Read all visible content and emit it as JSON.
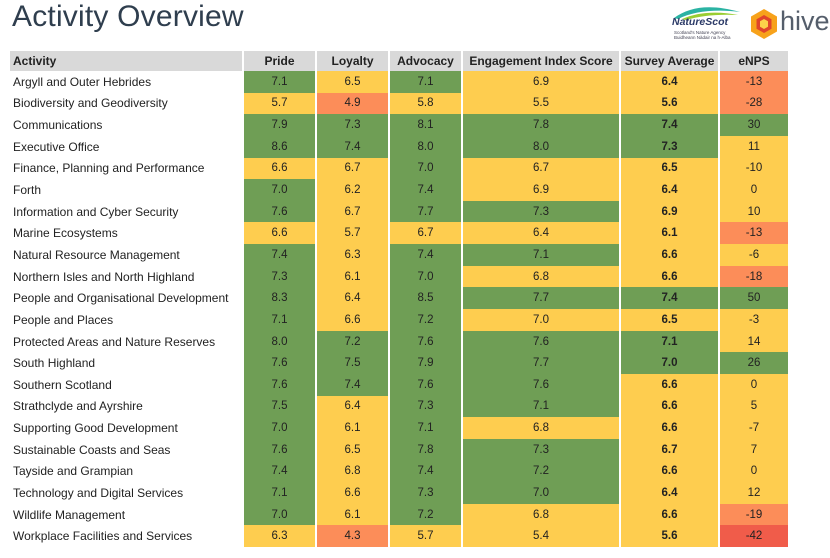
{
  "page": {
    "title": "Activity Overview"
  },
  "logos": {
    "naturescot": {
      "name": "NatureScot",
      "tagline": "Scotland's Nature Agency\nBuidheann Nàdair na h-Alba"
    },
    "hive": {
      "name": "hive",
      "accent_color": "#f39c12"
    }
  },
  "colors": {
    "green": "#6f9e55",
    "yellow": "#fecd4f",
    "orange": "#fc8d59",
    "red": "#f05c4a",
    "header": "#d9d9d9"
  },
  "table": {
    "headers": [
      "Activity",
      "Pride",
      "Loyalty",
      "Advocacy",
      "Engagement Index Score",
      "Survey Average",
      "eNPS"
    ],
    "rows": [
      {
        "activity": "Argyll and Outer Hebrides",
        "pride": "7.1",
        "loyalty": "6.5",
        "advocacy": "7.1",
        "eis": "6.9",
        "avg": "6.4",
        "enps": "-13"
      },
      {
        "activity": "Biodiversity and Geodiversity",
        "pride": "5.7",
        "loyalty": "4.9",
        "advocacy": "5.8",
        "eis": "5.5",
        "avg": "5.6",
        "enps": "-28"
      },
      {
        "activity": "Communications",
        "pride": "7.9",
        "loyalty": "7.3",
        "advocacy": "8.1",
        "eis": "7.8",
        "avg": "7.4",
        "enps": "30"
      },
      {
        "activity": "Executive Office",
        "pride": "8.6",
        "loyalty": "7.4",
        "advocacy": "8.0",
        "eis": "8.0",
        "avg": "7.3",
        "enps": "11"
      },
      {
        "activity": "Finance, Planning and Performance",
        "pride": "6.6",
        "loyalty": "6.7",
        "advocacy": "7.0",
        "eis": "6.7",
        "avg": "6.5",
        "enps": "-10"
      },
      {
        "activity": "Forth",
        "pride": "7.0",
        "loyalty": "6.2",
        "advocacy": "7.4",
        "eis": "6.9",
        "avg": "6.4",
        "enps": "0"
      },
      {
        "activity": "Information and Cyber Security",
        "pride": "7.6",
        "loyalty": "6.7",
        "advocacy": "7.7",
        "eis": "7.3",
        "avg": "6.9",
        "enps": "10"
      },
      {
        "activity": "Marine Ecosystems",
        "pride": "6.6",
        "loyalty": "5.7",
        "advocacy": "6.7",
        "eis": "6.4",
        "avg": "6.1",
        "enps": "-13"
      },
      {
        "activity": "Natural Resource Management",
        "pride": "7.4",
        "loyalty": "6.3",
        "advocacy": "7.4",
        "eis": "7.1",
        "avg": "6.6",
        "enps": "-6"
      },
      {
        "activity": "Northern Isles and North Highland",
        "pride": "7.3",
        "loyalty": "6.1",
        "advocacy": "7.0",
        "eis": "6.8",
        "avg": "6.6",
        "enps": "-18"
      },
      {
        "activity": "People and Organisational Development",
        "pride": "8.3",
        "loyalty": "6.4",
        "advocacy": "8.5",
        "eis": "7.7",
        "avg": "7.4",
        "enps": "50"
      },
      {
        "activity": "People and Places",
        "pride": "7.1",
        "loyalty": "6.6",
        "advocacy": "7.2",
        "eis": "7.0",
        "avg": "6.5",
        "enps": "-3"
      },
      {
        "activity": "Protected Areas and Nature Reserves",
        "pride": "8.0",
        "loyalty": "7.2",
        "advocacy": "7.6",
        "eis": "7.6",
        "avg": "7.1",
        "enps": "14"
      },
      {
        "activity": "South Highland",
        "pride": "7.6",
        "loyalty": "7.5",
        "advocacy": "7.9",
        "eis": "7.7",
        "avg": "7.0",
        "enps": "26"
      },
      {
        "activity": "Southern Scotland",
        "pride": "7.6",
        "loyalty": "7.4",
        "advocacy": "7.6",
        "eis": "7.6",
        "avg": "6.6",
        "enps": "0"
      },
      {
        "activity": "Strathclyde and Ayrshire",
        "pride": "7.5",
        "loyalty": "6.4",
        "advocacy": "7.3",
        "eis": "7.1",
        "avg": "6.6",
        "enps": "5"
      },
      {
        "activity": "Supporting Good Development",
        "pride": "7.0",
        "loyalty": "6.1",
        "advocacy": "7.1",
        "eis": "6.8",
        "avg": "6.6",
        "enps": "-7"
      },
      {
        "activity": "Sustainable Coasts and Seas",
        "pride": "7.6",
        "loyalty": "6.5",
        "advocacy": "7.8",
        "eis": "7.3",
        "avg": "6.7",
        "enps": "7"
      },
      {
        "activity": "Tayside and Grampian",
        "pride": "7.4",
        "loyalty": "6.8",
        "advocacy": "7.4",
        "eis": "7.2",
        "avg": "6.6",
        "enps": "0"
      },
      {
        "activity": "Technology and Digital Services",
        "pride": "7.1",
        "loyalty": "6.6",
        "advocacy": "7.3",
        "eis": "7.0",
        "avg": "6.4",
        "enps": "12"
      },
      {
        "activity": "Wildlife Management",
        "pride": "7.0",
        "loyalty": "6.1",
        "advocacy": "7.2",
        "eis": "6.8",
        "avg": "6.6",
        "enps": "-19"
      },
      {
        "activity": "Workplace Facilities and Services",
        "pride": "6.3",
        "loyalty": "4.3",
        "advocacy": "5.7",
        "eis": "5.4",
        "avg": "5.6",
        "enps": "-42"
      }
    ]
  }
}
